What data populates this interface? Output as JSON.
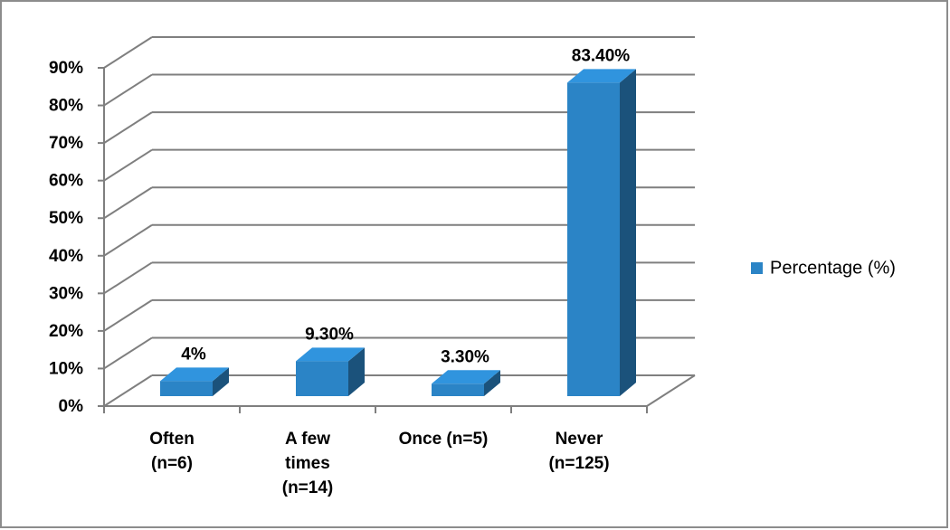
{
  "chart_data": {
    "type": "bar3d",
    "categories": [
      "Often (n=6)",
      "A few times (n=14)",
      "Once (n=5)",
      "Never (n=125)"
    ],
    "series": [
      {
        "name": "Percentage (%)",
        "color": "#2b84c6",
        "values": [
          4,
          9.3,
          3.3,
          83.4
        ],
        "value_labels": [
          "4%",
          "9.30%",
          "3.30%",
          "83.40%"
        ]
      }
    ],
    "ylim": [
      0,
      90
    ],
    "yticks": [
      {
        "value": 0,
        "label": "0%"
      },
      {
        "value": 10,
        "label": "10%"
      },
      {
        "value": 20,
        "label": "20%"
      },
      {
        "value": 30,
        "label": "30%"
      },
      {
        "value": 40,
        "label": "40%"
      },
      {
        "value": 50,
        "label": "50%"
      },
      {
        "value": 60,
        "label": "60%"
      },
      {
        "value": 70,
        "label": "70%"
      },
      {
        "value": 80,
        "label": "80%"
      },
      {
        "value": 90,
        "label": "90%"
      }
    ],
    "grid": true,
    "legend": "right"
  }
}
